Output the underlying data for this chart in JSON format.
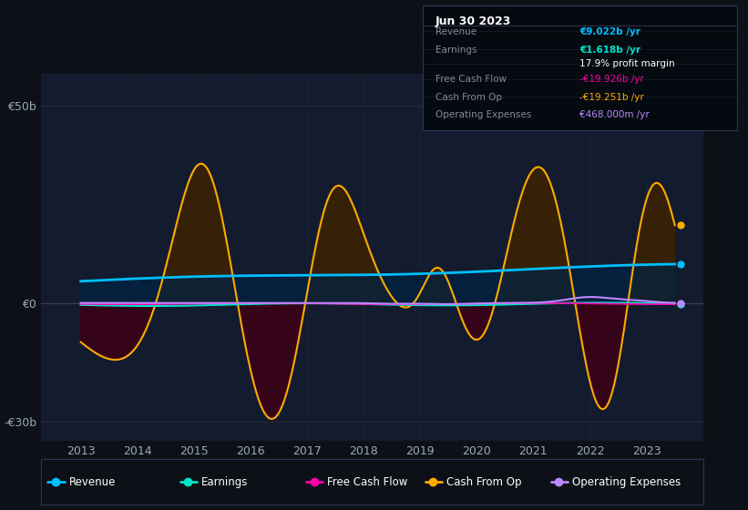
{
  "background_color": "#0d1117",
  "plot_bg_color": "#131c2e",
  "ylim": [
    -35,
    58
  ],
  "ytick_positions": [
    -30,
    0,
    50
  ],
  "ytick_labels": [
    "-€30b",
    "€0",
    "€50b"
  ],
  "xlim_min": 2012.3,
  "xlim_max": 2024.0,
  "xticks": [
    2013,
    2014,
    2015,
    2016,
    2017,
    2018,
    2019,
    2020,
    2021,
    2022,
    2023
  ],
  "colors": {
    "revenue": "#00bfff",
    "earnings": "#00e5cc",
    "free_cash_flow": "#ff00aa",
    "cash_from_op": "#ffaa00",
    "operating_expenses": "#bb88ff"
  },
  "legend_border_color": "#333355",
  "infobox_bg": "#050a10",
  "infobox_border": "#333355",
  "infobox_title": "Jun 30 2023",
  "infobox_rows": [
    {
      "label": "Revenue",
      "value": "€9.022b /yr",
      "lc": "#888899",
      "vc": "#00bfff"
    },
    {
      "label": "Earnings",
      "value": "€1.618b /yr",
      "lc": "#888899",
      "vc": "#00e5cc"
    },
    {
      "label": "",
      "value": "17.9% profit margin",
      "lc": "#888899",
      "vc": "#ffffff"
    },
    {
      "label": "Free Cash Flow",
      "value": "-€19.926b /yr",
      "lc": "#888899",
      "vc": "#ff00aa"
    },
    {
      "label": "Cash From Op",
      "value": "-€19.251b /yr",
      "lc": "#888899",
      "vc": "#ffaa00"
    },
    {
      "label": "Operating Expenses",
      "value": "€468.000m /yr",
      "lc": "#888899",
      "vc": "#bb88ff"
    }
  ],
  "legend_items": [
    {
      "label": "Revenue",
      "color": "#00bfff"
    },
    {
      "label": "Earnings",
      "color": "#00e5cc"
    },
    {
      "label": "Free Cash Flow",
      "color": "#ff00aa"
    },
    {
      "label": "Cash From Op",
      "color": "#ffaa00"
    },
    {
      "label": "Operating Expenses",
      "color": "#bb88ff"
    }
  ]
}
